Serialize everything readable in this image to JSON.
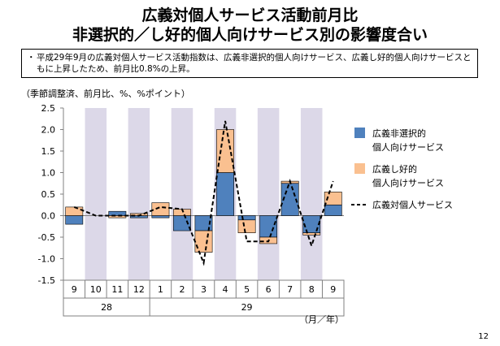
{
  "title_line1": "広義対個人サービス活動前月比",
  "title_line2": "非選択的／し好的個人向けサービス別の影響度合い",
  "note": {
    "bullet": "・",
    "text": "平成29年9月の広義対個人サービス活動指数は、広義非選択的個人向けサービス、広義し好的個人向けサービスともに上昇したため、前月比0.8%の上昇。"
  },
  "unit_note": "（季節調整済、前月比、%、%ポイント）",
  "page_number": "12",
  "chart_data": {
    "type": "bar",
    "subtype": "stacked-bar-with-line",
    "categories": [
      "9",
      "10",
      "11",
      "12",
      "1",
      "2",
      "3",
      "4",
      "5",
      "6",
      "7",
      "8",
      "9"
    ],
    "year_labels": [
      {
        "label": "28",
        "from": 0,
        "to": 3
      },
      {
        "label": "29",
        "from": 4,
        "to": 12
      }
    ],
    "x_unit_label": "（月／年）",
    "ylim": [
      -1.5,
      2.5
    ],
    "yticks": [
      2.5,
      2.0,
      1.5,
      1.0,
      0.5,
      0.0,
      -0.5,
      -1.0,
      -1.5
    ],
    "ytick_labels": [
      "2.5",
      "2.0",
      "1.5",
      "1.0",
      "0.5",
      "0.0",
      "-0.5",
      "-1.0",
      "-1.5"
    ],
    "shaded_categories": [
      1,
      3,
      5,
      7,
      9,
      11
    ],
    "series": [
      {
        "name": "広義非選択的\n個人向けサービス",
        "kind": "bar",
        "color": "#4f81bd",
        "values": [
          -0.2,
          0.0,
          0.1,
          -0.05,
          -0.05,
          -0.35,
          -0.35,
          1.0,
          -0.1,
          -0.5,
          0.75,
          -0.4,
          0.25
        ]
      },
      {
        "name": "広義し好的\n個人向けサービス",
        "kind": "bar",
        "color": "#fac090",
        "values": [
          0.2,
          0.0,
          -0.05,
          0.05,
          0.3,
          0.15,
          -0.5,
          1.0,
          -0.3,
          -0.15,
          0.05,
          -0.05,
          0.3
        ]
      },
      {
        "name": "広義対個人サービス",
        "kind": "line",
        "dash": true,
        "color": "#000000",
        "values": [
          0.2,
          0.0,
          0.0,
          0.0,
          0.2,
          0.15,
          -1.1,
          2.2,
          -0.6,
          -0.6,
          0.8,
          -0.7,
          0.8
        ]
      }
    ],
    "legend_position": "right",
    "grid": false
  }
}
